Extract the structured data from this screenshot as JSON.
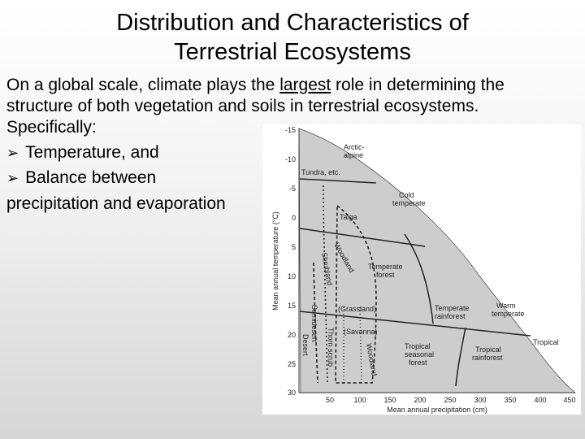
{
  "title": {
    "line1": "Distribution and Characteristics of",
    "line2": "Terrestrial Ecosystems"
  },
  "body": {
    "line1_pre": "On a global scale, climate plays the ",
    "line1_underlined": "largest",
    "line1_post": " role in determining the",
    "line2": "structure of both vegetation and soils in terrestrial ecosystems.",
    "line3": "Specifically:",
    "bullets": [
      "Temperature, and",
      "Balance between"
    ],
    "continuation": "precipitation and evaporation",
    "bullet_icon": "arrow-bullet-icon"
  },
  "diagram": {
    "y_axis_label": "Mean annual temperature (°C)",
    "x_axis_label": "Mean annual precipitation (cm)",
    "y_ticks": [
      "-15",
      "-10",
      "-5",
      "0",
      "5",
      "10",
      "15",
      "20",
      "25",
      "30"
    ],
    "x_ticks": [
      "50",
      "100",
      "150",
      "200",
      "250",
      "300",
      "350",
      "400",
      "450"
    ],
    "biome_labels": {
      "arctic_alpine": [
        "Arctic-",
        "alpine"
      ],
      "tundra": "Tundra, etc.",
      "cold_temperate": [
        "Cold",
        "temperate"
      ],
      "taiga": "Taiga",
      "woodland_upper": "Woodland",
      "shrubland": "Shrubland",
      "temperate_forest": [
        "Temperate",
        "forest"
      ],
      "grassland": "(Grassland)",
      "semidesert": "Semidesert",
      "temperate_rainforest": [
        "Temperate",
        "rainforest"
      ],
      "warm_temperate": [
        "Warm",
        "temperate"
      ],
      "savanna": "(Savanna)",
      "thorn_scrub": "Thorn scrub",
      "woodland_lower": "Woodland",
      "desert": "Desert",
      "tropical_seasonal_forest": [
        "Tropical",
        "seasonal",
        "forest"
      ],
      "tropical_rainforest": [
        "Tropical",
        "rainforest"
      ],
      "tropical": "Tropical"
    },
    "fill_color": "#d0d0d0",
    "line_color": "#1e1e1e"
  }
}
